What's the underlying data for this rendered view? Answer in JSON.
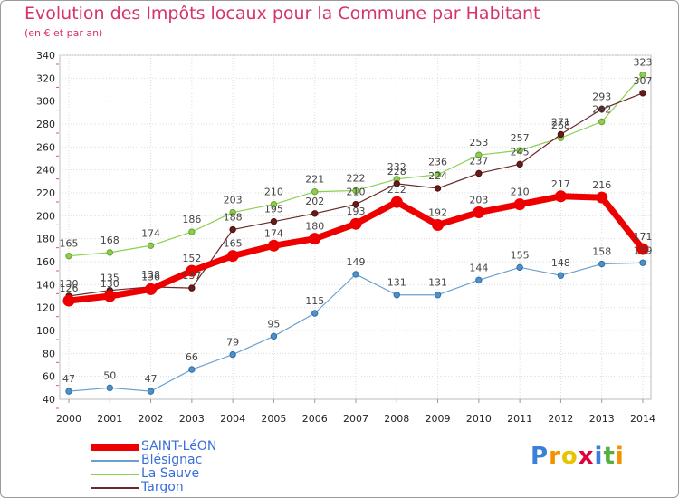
{
  "chart_data": {
    "type": "line",
    "title": "Evolution des Impôts locaux pour la Commune par Habitant",
    "subtitle": "(en € et par an)",
    "x": [
      "2000",
      "2001",
      "2002",
      "2003",
      "2004",
      "2005",
      "2006",
      "2007",
      "2008",
      "2009",
      "2010",
      "2011",
      "2012",
      "2013",
      "2014"
    ],
    "ylim": [
      40,
      340
    ],
    "yticks": [
      40,
      60,
      80,
      100,
      120,
      140,
      160,
      180,
      200,
      220,
      240,
      260,
      280,
      300,
      320,
      340
    ],
    "grid": true,
    "legend_position": "bottom-left",
    "series": [
      {
        "name": "SAINT-LéON",
        "color": "#ee0000",
        "values": [
          126,
          130,
          136,
          152,
          165,
          174,
          180,
          193,
          212,
          192,
          203,
          210,
          217,
          216,
          171
        ]
      },
      {
        "name": "Blésignac",
        "color": "#6aa0d0",
        "values": [
          47,
          50,
          47,
          66,
          79,
          95,
          115,
          149,
          131,
          131,
          144,
          155,
          148,
          158,
          159
        ]
      },
      {
        "name": "La Sauve",
        "color": "#8ccf50",
        "values": [
          165,
          168,
          174,
          186,
          203,
          210,
          221,
          222,
          232,
          236,
          253,
          257,
          268,
          282,
          323
        ]
      },
      {
        "name": "Targon",
        "color": "#6b2a2a",
        "values": [
          130,
          135,
          138,
          137,
          188,
          195,
          202,
          210,
          228,
          224,
          237,
          245,
          271,
          293,
          307
        ]
      }
    ],
    "annotations": {
      "SAINT-LéON": [
        "126",
        "130",
        "136",
        "152",
        "165",
        "174",
        "180",
        "193",
        "212",
        "192",
        "203",
        "210",
        "217",
        "216",
        "171"
      ],
      "Blésignac": [
        "47",
        "50",
        "47",
        "66",
        "79",
        "95",
        "115",
        "149",
        "131",
        "131",
        "144",
        "155",
        "148",
        "158",
        "159"
      ],
      "La Sauve": [
        "165",
        "168",
        "174",
        "186",
        "203",
        "210",
        "221",
        "222",
        "232",
        "236",
        "253",
        "257",
        "268",
        "282",
        "323"
      ],
      "Targon": [
        "130",
        "135",
        "138",
        "137",
        "188",
        "195",
        "202",
        "210",
        "228",
        "224",
        "237",
        "245",
        "271",
        "293",
        "307"
      ]
    }
  },
  "logo": {
    "text": "Proxiti",
    "letters": [
      "P",
      "r",
      "o",
      "x",
      "i",
      "t",
      "i"
    ],
    "colors": [
      "#3a7fd8",
      "#f39200",
      "#e8c400",
      "#e2003c",
      "#3a7fd8",
      "#56b03e",
      "#f39200"
    ]
  }
}
